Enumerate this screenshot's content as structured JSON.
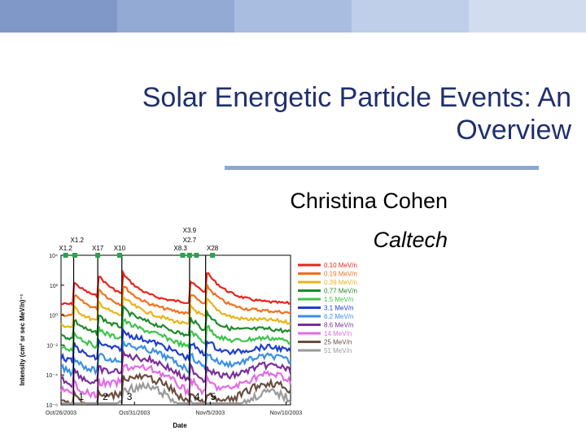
{
  "slide": {
    "title": "Solar Energetic Particle Events:  An Overview",
    "author": "Christina Cohen",
    "affiliation": "Caltech"
  },
  "colors": {
    "title": "#1f2f6e",
    "title_rule": "#8ea7d1",
    "top_bar": [
      "#7f98c8",
      "#93aad4",
      "#a9bde0",
      "#bfcfe9",
      "#d2dcef"
    ]
  },
  "figure": {
    "ylabel": "Intensity (cm² sr sec MeV/n)⁻¹",
    "xlabel": "Date",
    "xtick_labels": [
      "Oct/26/2003",
      "Oct/31/2003",
      "Nov/5/2003",
      "Nov/10/2003"
    ],
    "ytick_labels": [
      "10⁴",
      "10²",
      "10⁰",
      "10⁻²",
      "10⁻⁴",
      "10⁻⁶"
    ],
    "flares": [
      {
        "label": "X1.2",
        "row": "upper"
      },
      {
        "label": "X1.2",
        "row": "lower"
      },
      {
        "label": "X17",
        "row": "lower"
      },
      {
        "label": "X10",
        "row": "lower"
      },
      {
        "label": "X3.9",
        "row": "top"
      },
      {
        "label": "X2.7",
        "row": "upper"
      },
      {
        "label": "X8.3",
        "row": "lower"
      },
      {
        "label": "X28",
        "row": "lower"
      }
    ],
    "event_numbers": [
      "1",
      "2",
      "3",
      "4",
      "5"
    ],
    "legend": [
      {
        "label": "0.10 MeV/n",
        "color": "#e8251c"
      },
      {
        "label": "0.19 MeV/n",
        "color": "#f0701e"
      },
      {
        "label": "0.39 MeV/n",
        "color": "#e8b41a"
      },
      {
        "label": "0.77 MeV/n",
        "color": "#1f8a2a"
      },
      {
        "label": "1.5 MeV/n",
        "color": "#3cc54a"
      },
      {
        "label": "3.1 MeV/n",
        "color": "#1f3fcf"
      },
      {
        "label": "6.2 MeV/n",
        "color": "#3b8fe6"
      },
      {
        "label": "8.6 MeV/n",
        "color": "#7a2f9a"
      },
      {
        "label": "14 MeV/n",
        "color": "#e26ce6"
      },
      {
        "label": "25 MeV/n",
        "color": "#6b4e3e"
      },
      {
        "label": "51 MeV/n",
        "color": "#9a9a9a"
      }
    ]
  }
}
